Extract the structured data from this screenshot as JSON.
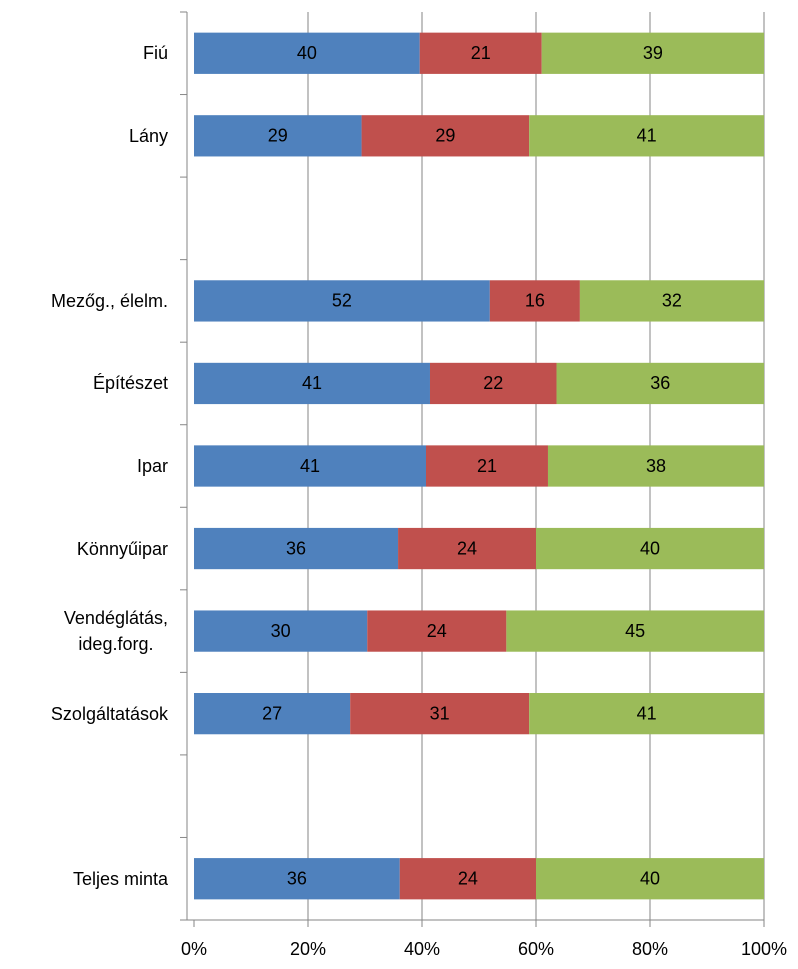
{
  "chart_data": {
    "type": "stacked_bar_horizontal",
    "categories": [
      "Fiú",
      "Lány",
      null,
      "Mezőg., élelm.",
      "Építészet",
      "Ipar",
      "Könnyűipar",
      "Vendéglátás,\nideg.forg.",
      "Szolgáltatások",
      null,
      "Teljes minta"
    ],
    "series": [
      {
        "color": "#4f81bd",
        "values": [
          39.6,
          29.4,
          null,
          51.9,
          41.4,
          40.7,
          35.8,
          30.4,
          27.4,
          null,
          36.1
        ],
        "value_labels": [
          "40",
          "29",
          null,
          "52",
          "41",
          "41",
          "36",
          "30",
          "27",
          null,
          "36"
        ]
      },
      {
        "color": "#c0504d",
        "values": [
          21.4,
          29.4,
          null,
          15.8,
          22.2,
          21.4,
          24.2,
          24.4,
          31.4,
          null,
          23.9
        ],
        "value_labels": [
          "21",
          "29",
          null,
          "16",
          "22",
          "21",
          "24",
          "24",
          "31",
          null,
          "24"
        ]
      },
      {
        "color": "#9bbb59",
        "values": [
          39.0,
          41.2,
          null,
          32.3,
          36.4,
          37.9,
          40.0,
          45.2,
          41.2,
          null,
          40.0
        ],
        "value_labels": [
          "39",
          "41",
          null,
          "32",
          "36",
          "38",
          "40",
          "45",
          "41",
          null,
          "40"
        ]
      }
    ],
    "xlim": [
      0,
      100
    ],
    "xticks": [
      {
        "value": 0,
        "label": "0%"
      },
      {
        "value": 20,
        "label": "20%"
      },
      {
        "value": 40,
        "label": "40%"
      },
      {
        "value": 60,
        "label": "60%"
      },
      {
        "value": 80,
        "label": "80%"
      },
      {
        "value": 100,
        "label": "100%"
      }
    ],
    "grid": true
  }
}
